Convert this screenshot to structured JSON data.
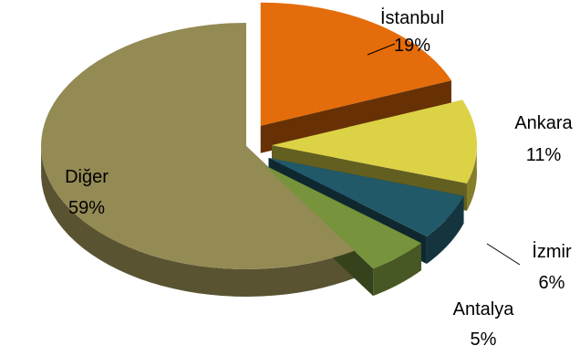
{
  "chart_data": {
    "type": "pie",
    "style": "3d-exploded",
    "slices": [
      {
        "label": "İstanbul",
        "value": 19,
        "value_label": "19%",
        "color": "#E46C0A"
      },
      {
        "label": "Ankara",
        "value": 11,
        "value_label": "11%",
        "color": "#DCD246"
      },
      {
        "label": "İzmir",
        "value": 6,
        "value_label": "6%",
        "color": "#215968"
      },
      {
        "label": "Antalya",
        "value": 5,
        "value_label": "5%",
        "color": "#77933C"
      },
      {
        "label": "Diğer",
        "value": 59,
        "value_label": "59%",
        "color": "#948A54"
      }
    ]
  }
}
